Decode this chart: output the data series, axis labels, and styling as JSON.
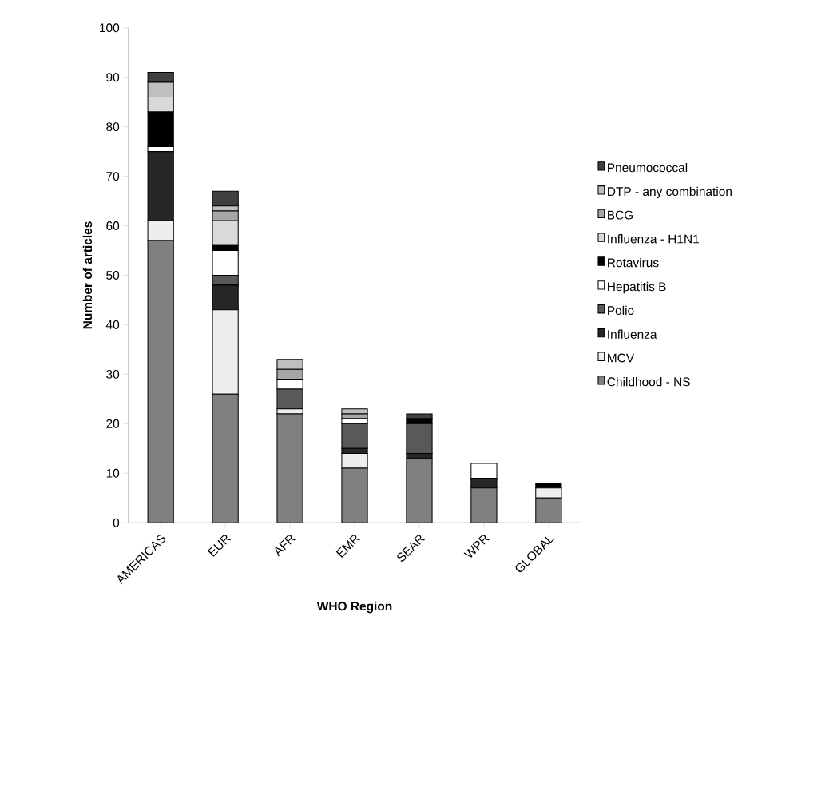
{
  "chart_data": {
    "type": "bar",
    "stacked": true,
    "xlabel": "WHO Region",
    "ylabel": "Number of articles",
    "categories": [
      "AMERICAS",
      "EUR",
      "AFR",
      "EMR",
      "SEAR",
      "WPR",
      "GLOBAL"
    ],
    "ylim": [
      0,
      100
    ],
    "yticks": [
      0,
      10,
      20,
      30,
      40,
      50,
      60,
      70,
      80,
      90,
      100
    ],
    "grid": false,
    "legend": "right",
    "series": [
      {
        "name": "Childhood - NS",
        "color": "#808080",
        "values": [
          57,
          26,
          22,
          11,
          13,
          7,
          5
        ]
      },
      {
        "name": "MCV",
        "color": "#eeeeee",
        "values": [
          4,
          17,
          1,
          3,
          0,
          0,
          2
        ]
      },
      {
        "name": "Influenza",
        "color": "#262626",
        "values": [
          14,
          5,
          0,
          1,
          1,
          2,
          0
        ]
      },
      {
        "name": "Polio",
        "color": "#595959",
        "values": [
          0,
          2,
          4,
          5,
          6,
          0,
          0
        ]
      },
      {
        "name": "Hepatitis B",
        "color": "#ffffff",
        "values": [
          1,
          5,
          2,
          1,
          0,
          3,
          0
        ]
      },
      {
        "name": "Rotavirus",
        "color": "#000000",
        "values": [
          7,
          1,
          0,
          0,
          1,
          0,
          1
        ]
      },
      {
        "name": "Influenza - H1N1",
        "color": "#d9d9d9",
        "values": [
          3,
          5,
          0,
          0,
          0,
          0,
          0
        ]
      },
      {
        "name": "BCG",
        "color": "#a6a6a6",
        "values": [
          0,
          2,
          2,
          1,
          0,
          0,
          0
        ]
      },
      {
        "name": "DTP - any combination",
        "color": "#bfbfbf",
        "values": [
          3,
          1,
          2,
          1,
          0,
          0,
          0
        ]
      },
      {
        "name": "Pneumococcal",
        "color": "#404040",
        "values": [
          2,
          3,
          0,
          0,
          1,
          0,
          0
        ]
      }
    ]
  }
}
